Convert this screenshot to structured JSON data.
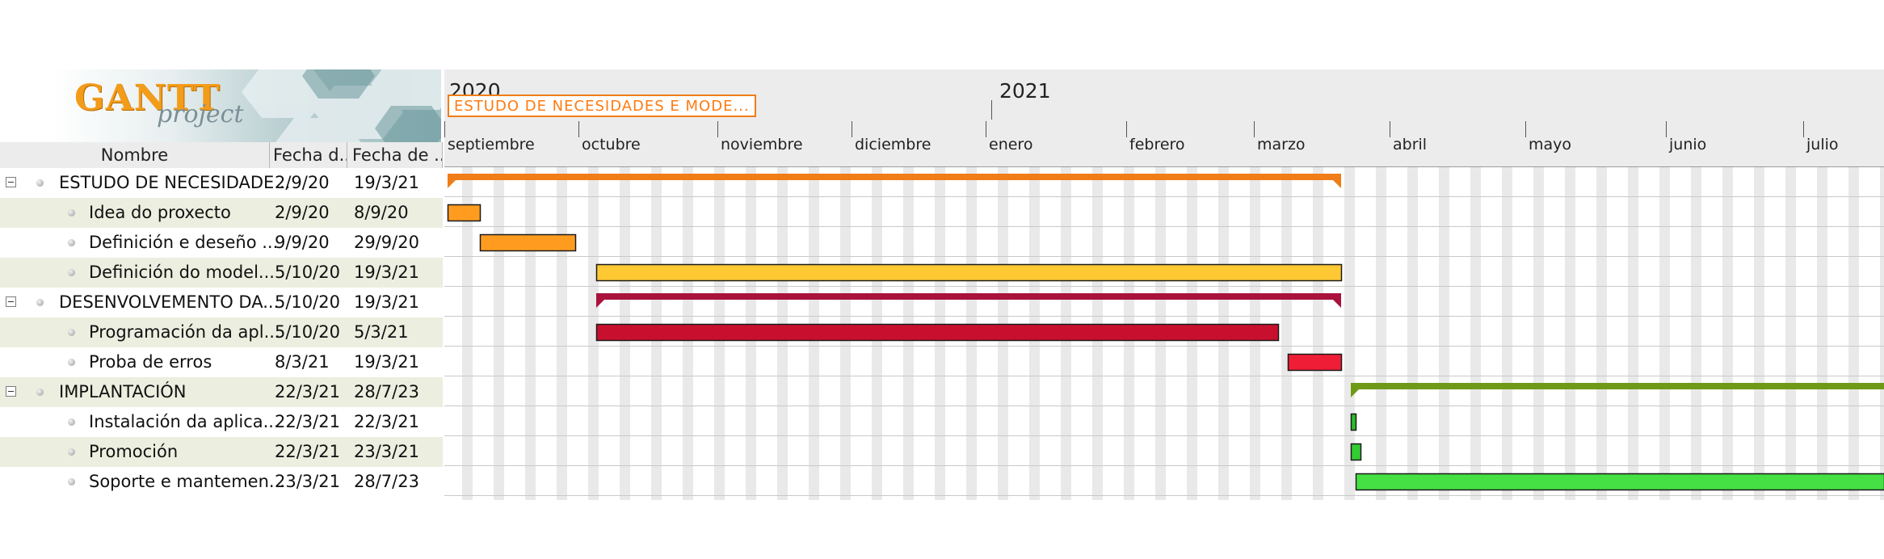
{
  "app": {
    "logo_text_main": "GANTT",
    "logo_text_sub": "project"
  },
  "columns": {
    "name": "Nombre",
    "start": "Fecha d...",
    "end": "Fecha de ..."
  },
  "tasks": [
    {
      "name": "ESTUDO DE NECESIDADE...",
      "start": "2/9/20",
      "end": "19/3/21",
      "level": 0,
      "group": true
    },
    {
      "name": "Idea do proxecto",
      "start": "2/9/20",
      "end": "8/9/20",
      "level": 1,
      "group": false
    },
    {
      "name": "Definición e deseño ...",
      "start": "9/9/20",
      "end": "29/9/20",
      "level": 1,
      "group": false
    },
    {
      "name": "Definición do model...",
      "start": "5/10/20",
      "end": "19/3/21",
      "level": 1,
      "group": false
    },
    {
      "name": "DESENVOLVEMENTO DA...",
      "start": "5/10/20",
      "end": "19/3/21",
      "level": 0,
      "group": true
    },
    {
      "name": "Programación da apl...",
      "start": "5/10/20",
      "end": "5/3/21",
      "level": 1,
      "group": false
    },
    {
      "name": "Proba de erros",
      "start": "8/3/21",
      "end": "19/3/21",
      "level": 1,
      "group": false
    },
    {
      "name": "IMPLANTACIÓN",
      "start": "22/3/21",
      "end": "28/7/23",
      "level": 0,
      "group": true
    },
    {
      "name": "Instalación da aplica...",
      "start": "22/3/21",
      "end": "22/3/21",
      "level": 1,
      "group": false
    },
    {
      "name": "Promoción",
      "start": "22/3/21",
      "end": "23/3/21",
      "level": 1,
      "group": false
    },
    {
      "name": "Soporte e mantemen...",
      "start": "23/3/21",
      "end": "28/7/23",
      "level": 1,
      "group": false
    }
  ],
  "timeline": {
    "years": [
      "2020",
      "2021"
    ],
    "months": [
      "septiembre",
      "octubre",
      "noviembre",
      "diciembre",
      "enero",
      "febrero",
      "marzo",
      "abril",
      "mayo",
      "junio",
      "julio"
    ],
    "hover_label": "ESTUDO DE NECESIDADES E MODE..."
  },
  "bar_colors": [
    "#f07d17",
    "#ff9c1f",
    "#ff9c1f",
    "#ffc934",
    "#a8123c",
    "#c8102e",
    "#ef1d36",
    "#6f9a18",
    "#2bbf2b",
    "#33cc33",
    "#44e044"
  ]
}
